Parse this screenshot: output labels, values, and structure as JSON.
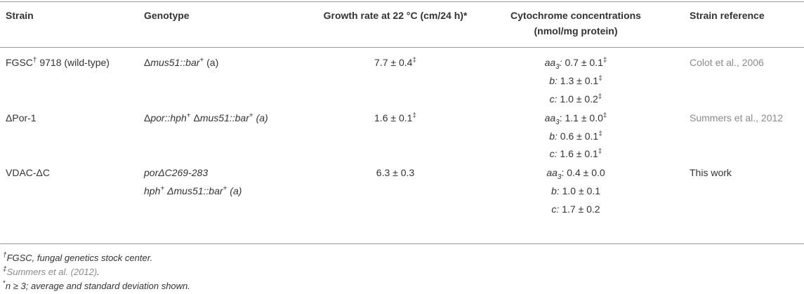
{
  "table": {
    "header": {
      "strain": "Strain",
      "genotype": "Genotype",
      "growth": "Growth rate at 22 °C (cm/24 h)*",
      "cytochromes": [
        "Cytochrome concentrations",
        "(nmol/mg protein)"
      ],
      "reference": "Strain reference"
    },
    "rows": [
      {
        "strain": [
          "FGSC",
          "†",
          " 9718 (wild-type)"
        ],
        "genotype": [
          [
            "Δ",
            "mus51::bar",
            "+",
            " (a)"
          ]
        ],
        "growth": [
          "7.7 ± 0.4",
          "‡"
        ],
        "cytochromes": [
          [
            "aa",
            "3",
            ":",
            " 0.7 ± 0.1",
            "‡"
          ],
          [
            "b:",
            " 1.3 ± 0.1",
            "‡"
          ],
          [
            "c:",
            " 1.0 ± 0.2",
            "‡"
          ]
        ],
        "reference": "Colot et al., 2006"
      },
      {
        "strain": [
          "ΔPor-1"
        ],
        "genotype": [
          [
            "Δ",
            "por::hph",
            "+",
            " Δ",
            "mus51::bar",
            "+",
            " (a)"
          ]
        ],
        "growth": [
          "1.6 ± 0.1",
          "‡"
        ],
        "cytochromes": [
          [
            "aa",
            "3",
            ":",
            " 1.1 ± 0.0",
            "‡"
          ],
          [
            "b:",
            " 0.6 ± 0.1",
            "‡"
          ],
          [
            "c:",
            " 1.6 ± 0.1",
            "‡"
          ]
        ],
        "reference": "Summers et al., 2012"
      },
      {
        "strain": [
          "VDAC-ΔC"
        ],
        "genotype": [
          [
            "por",
            "ΔC269-283"
          ],
          [
            "hph",
            "+",
            " Δ",
            "mus51::bar",
            "+",
            " (a)"
          ]
        ],
        "growth": [
          "6.3 ± 0.3"
        ],
        "cytochromes": [
          [
            "aa",
            "3",
            ":",
            " 0.4 ± 0.0"
          ],
          [
            "b:",
            " 1.0 ± 0.1"
          ],
          [
            "c:",
            " 1.7 ± 0.2"
          ]
        ],
        "reference": "This work"
      }
    ],
    "footnotes": [
      [
        "†",
        "FGSC, fungal genetics stock center."
      ],
      [
        "‡",
        "Summers et al. (2012)",
        "."
      ],
      [
        "*",
        "n",
        " ≥ 3; average and standard deviation shown."
      ]
    ]
  }
}
